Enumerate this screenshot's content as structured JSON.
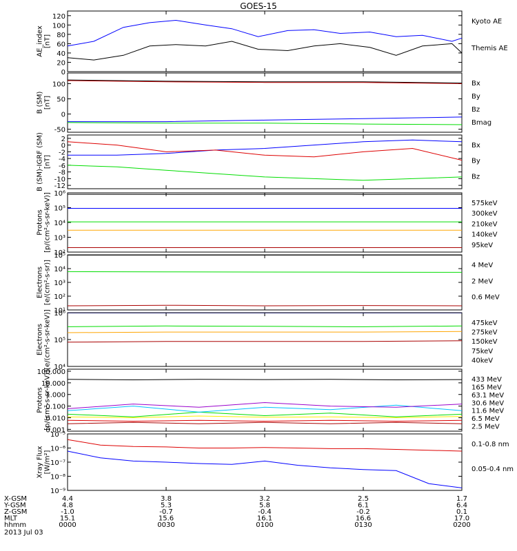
{
  "title": "GOES-15",
  "date_label": "2013 Jul 03",
  "colors": {
    "black": "#000000",
    "blue": "#0000ff",
    "red": "#dd0000",
    "green": "#00dd00",
    "orange": "#ffa500",
    "darkred": "#aa0000",
    "cyan": "#00c0ff",
    "purple": "#9900cc",
    "yellow": "#ffee00",
    "navy": "#000099"
  },
  "ephemeris": {
    "rows": [
      "X-GSM",
      "Y-GSM",
      "Z-GSM",
      "MLT",
      "hhmm"
    ],
    "columns": [
      [
        "4.4",
        "4.8",
        "-1.0",
        "15.1",
        "0000"
      ],
      [
        "3.8",
        "5.3",
        "-0.7",
        "15.6",
        "0030"
      ],
      [
        "3.2",
        "5.8",
        "-0.4",
        "16.1",
        "0100"
      ],
      [
        "2.5",
        "6.1",
        "-0.2",
        "16.6",
        "0130"
      ],
      [
        "1.7",
        "6.4",
        "0.1",
        "17.0",
        "0200"
      ]
    ]
  },
  "chart_data": [
    {
      "type": "line",
      "ylabel": "AE_index\n[nT]",
      "ylim": [
        0,
        130
      ],
      "yticks": [
        "0",
        "20",
        "40",
        "60",
        "80",
        "100",
        "120"
      ],
      "x": [
        0,
        8,
        17,
        25,
        33,
        42,
        50,
        58,
        67,
        75,
        83,
        92,
        100,
        108,
        117,
        120
      ],
      "series": [
        {
          "name": "Kyoto AE",
          "color": "blue",
          "values": [
            55,
            65,
            95,
            105,
            110,
            100,
            92,
            75,
            88,
            90,
            82,
            85,
            75,
            78,
            65,
            72
          ]
        },
        {
          "name": "Themis AE",
          "color": "black",
          "values": [
            30,
            25,
            35,
            55,
            58,
            55,
            65,
            48,
            45,
            55,
            60,
            52,
            35,
            55,
            60,
            40
          ]
        }
      ]
    },
    {
      "type": "line",
      "ylabel": "B (SM)\n[nT]",
      "ylim": [
        -60,
        135
      ],
      "yticks": [
        "-50",
        "0",
        "50",
        "100"
      ],
      "x": [
        0,
        30,
        60,
        90,
        120
      ],
      "series": [
        {
          "name": "Bx",
          "color": "blue",
          "values": [
            -25,
            -25,
            -20,
            -15,
            -10
          ]
        },
        {
          "name": "By",
          "color": "green",
          "values": [
            -28,
            -30,
            -30,
            -33,
            -35
          ]
        },
        {
          "name": "Bz",
          "color": "red",
          "values": [
            110,
            106,
            104,
            104,
            100
          ]
        },
        {
          "name": "Bmag",
          "color": "black",
          "values": [
            112,
            108,
            106,
            106,
            102
          ]
        }
      ]
    },
    {
      "type": "line",
      "ylabel": "B (SM)-IGRF (SM)\n[nT]",
      "ylim": [
        -13,
        3
      ],
      "yticks": [
        "-12",
        "-10",
        "-8",
        "-6",
        "-4",
        "-2",
        "0",
        "2"
      ],
      "x": [
        0,
        15,
        30,
        45,
        60,
        75,
        90,
        105,
        120
      ],
      "series": [
        {
          "name": "Bx",
          "color": "blue",
          "values": [
            -3,
            -3,
            -2.5,
            -1.5,
            -1,
            0,
            1,
            1.5,
            1
          ]
        },
        {
          "name": "By",
          "color": "green",
          "values": [
            -6,
            -6.5,
            -7.5,
            -8.5,
            -9.5,
            -10,
            -10.5,
            -10,
            -9.5
          ]
        },
        {
          "name": "Bz",
          "color": "red",
          "values": [
            1,
            0,
            -2,
            -1.5,
            -3,
            -3.5,
            -2,
            -1,
            -4.5
          ]
        }
      ]
    },
    {
      "type": "line",
      "ylabel": "Protons\n[p/(cm²-s-sr-keV)]",
      "yscale": "log",
      "ylim": [
        100,
        1000000
      ],
      "yticks": [
        "10²",
        "10³",
        "10⁴",
        "10⁵",
        "10⁶"
      ],
      "x": [
        0,
        30,
        60,
        90,
        120
      ],
      "series": [
        {
          "name": "575keV",
          "color": "darkred",
          "values": [
            200,
            200,
            200,
            200,
            200
          ]
        },
        {
          "name": "300keV",
          "color": "orange",
          "values": [
            3000,
            3000,
            3000,
            3000,
            3000
          ]
        },
        {
          "name": "210keV",
          "color": "green",
          "values": [
            11000,
            11000,
            11000,
            11000,
            11000
          ]
        },
        {
          "name": "140keV",
          "color": "blue",
          "values": [
            90000,
            90000,
            90000,
            90000,
            90000
          ]
        },
        {
          "name": "95keV",
          "color": "black",
          "values": [
            800000,
            780000,
            800000,
            790000,
            800000
          ]
        }
      ]
    },
    {
      "type": "line",
      "ylabel": "Electrons\n[e/(cm²-s-sr)]",
      "yscale": "log",
      "ylim": [
        10,
        100000
      ],
      "yticks": [
        "10¹",
        "10²",
        "10³",
        "10⁴",
        "10⁵"
      ],
      "x": [
        0,
        30,
        60,
        90,
        120
      ],
      "series": [
        {
          "name": "4 MeV",
          "color": "darkred",
          "values": [
            20,
            22,
            20,
            21,
            20
          ]
        },
        {
          "name": "2 MeV",
          "color": "green",
          "values": [
            6000,
            5800,
            5600,
            5500,
            5400
          ]
        },
        {
          "name": "0.6 MeV",
          "color": "black",
          "values": [
            95000,
            95000,
            95000,
            95000,
            95000
          ]
        }
      ]
    },
    {
      "type": "line",
      "ylabel": "Electrons\n[e/(cm²-s-sr-keV)]",
      "yscale": "log",
      "ylim": [
        10000,
        1000000
      ],
      "yticks": [
        "10⁴",
        "10⁵",
        "10⁶"
      ],
      "x": [
        0,
        30,
        60,
        90,
        120
      ],
      "series": [
        {
          "name": "475keV",
          "color": "darkred",
          "values": [
            80000,
            85000,
            85000,
            85000,
            90000
          ]
        },
        {
          "name": "275keV",
          "color": "orange",
          "values": [
            180000,
            190000,
            190000,
            190000,
            200000
          ]
        },
        {
          "name": "150keV",
          "color": "green",
          "values": [
            300000,
            320000,
            310000,
            300000,
            320000
          ]
        },
        {
          "name": "75keV",
          "color": "blue",
          "values": [
            980000,
            980000,
            980000,
            980000,
            980000
          ]
        },
        {
          "name": "40keV",
          "color": "black",
          "values": [
            1000000,
            1000000,
            1000000,
            1000000,
            1000000
          ]
        }
      ]
    },
    {
      "type": "line",
      "ylabel": "Protons\n[p/(cm²-s-sr-keV)]",
      "yscale": "log",
      "ylim": [
        0.0007,
        150
      ],
      "yticks": [
        "0.001",
        "0.010",
        "0.100",
        "1.000",
        "10.000",
        "100.000"
      ],
      "x": [
        0,
        20,
        40,
        60,
        80,
        100,
        120
      ],
      "series": [
        {
          "name": "433 MeV",
          "color": "darkred",
          "values": [
            0.003,
            0.004,
            0.003,
            0.004,
            0.003,
            0.004,
            0.003
          ]
        },
        {
          "name": "165 MeV",
          "color": "red",
          "values": [
            0.006,
            0.005,
            0.006,
            0.005,
            0.006,
            0.005,
            0.006
          ]
        },
        {
          "name": "63.1 MeV",
          "color": "yellow",
          "values": [
            0.012,
            0.01,
            0.014,
            0.011,
            0.012,
            0.01,
            0.013
          ]
        },
        {
          "name": "30.6 MeV",
          "color": "green",
          "values": [
            0.02,
            0.012,
            0.03,
            0.015,
            0.025,
            0.012,
            0.02
          ]
        },
        {
          "name": "11.6 MeV",
          "color": "cyan",
          "values": [
            0.04,
            0.1,
            0.03,
            0.08,
            0.05,
            0.12,
            0.04
          ]
        },
        {
          "name": "6.5 MeV",
          "color": "purple",
          "values": [
            0.06,
            0.15,
            0.08,
            0.2,
            0.1,
            0.08,
            0.15
          ]
        },
        {
          "name": "2.5 MeV",
          "color": "black",
          "values": [
            20,
            18,
            20,
            19,
            20,
            18,
            19
          ]
        }
      ]
    },
    {
      "type": "line",
      "ylabel": "Xray Flux\n[W/m²]",
      "yscale": "log",
      "ylim": [
        1e-09,
        1e-05
      ],
      "yticks": [
        "10⁻⁹",
        "10⁻⁸",
        "10⁻⁷",
        "10⁻⁶",
        "10⁻⁵"
      ],
      "x": [
        0,
        10,
        20,
        30,
        40,
        50,
        60,
        70,
        80,
        90,
        100,
        110,
        120
      ],
      "series": [
        {
          "name": "0.1-0.8 nm",
          "color": "red",
          "values": [
            4e-06,
            1.6e-06,
            1.3e-06,
            1.2e-06,
            1e-06,
            1e-06,
            1.1e-06,
            1e-06,
            9e-07,
            9e-07,
            8e-07,
            7e-07,
            6e-07
          ]
        },
        {
          "name": "0.05-0.4 nm",
          "color": "blue",
          "values": [
            6e-07,
            2e-07,
            1.2e-07,
            1e-07,
            8e-08,
            7e-08,
            1.2e-07,
            6e-08,
            4e-08,
            3e-08,
            2.5e-08,
            3e-09,
            1.5e-09
          ]
        }
      ]
    }
  ]
}
